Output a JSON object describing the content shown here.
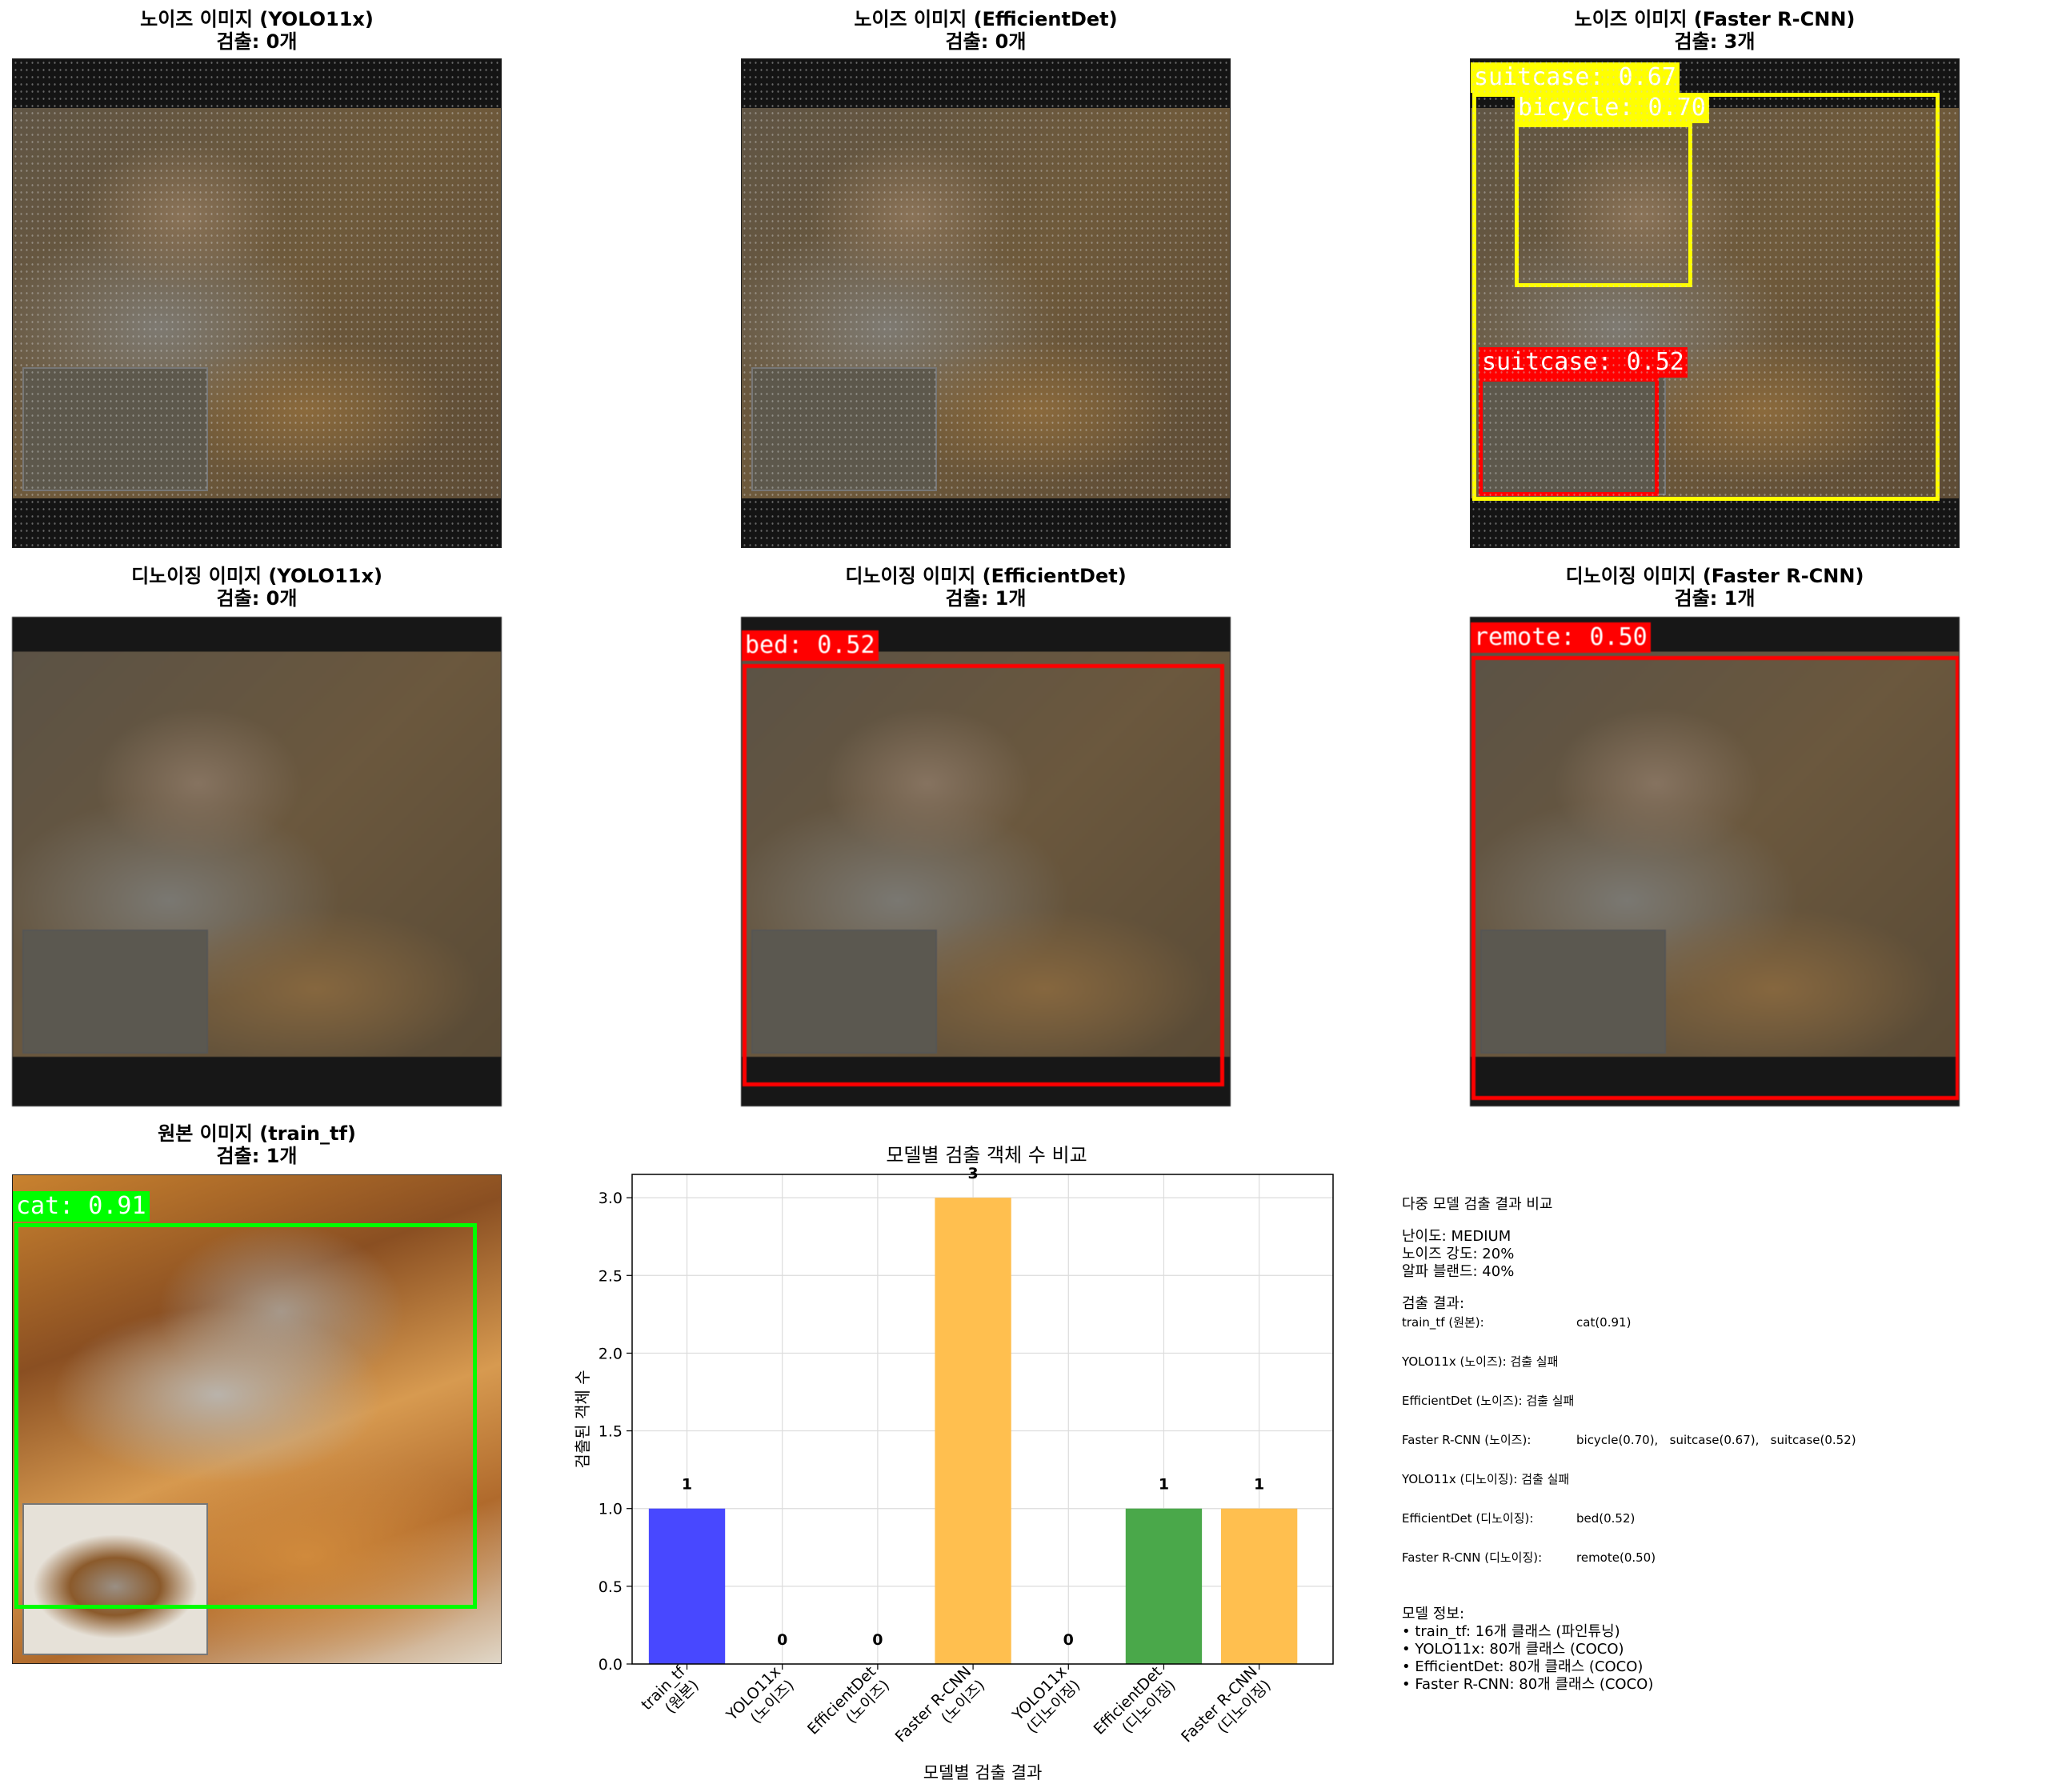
{
  "panels": {
    "noisy_yolo": {
      "title": "노이즈 이미지 (YOLO11x)",
      "count": "검출: 0개"
    },
    "noisy_effdet": {
      "title": "노이즈 이미지 (EfficientDet)",
      "count": "검출: 0개"
    },
    "noisy_frcnn": {
      "title": "노이즈 이미지 (Faster R-CNN)",
      "count": "검출: 3개",
      "boxes": [
        {
          "label": "suitcase: 0.67",
          "color": "#ffff00"
        },
        {
          "label": "bicycle: 0.70",
          "color": "#ffff00"
        },
        {
          "label": "suitcase: 0.52",
          "color": "#ff0000"
        }
      ]
    },
    "den_yolo": {
      "title": "디노이징 이미지 (YOLO11x)",
      "count": "검출: 0개"
    },
    "den_effdet": {
      "title": "디노이징 이미지 (EfficientDet)",
      "count": "검출: 1개",
      "boxes": [
        {
          "label": "bed: 0.52",
          "color": "#ff0000"
        }
      ]
    },
    "den_frcnn": {
      "title": "디노이징 이미지 (Faster R-CNN)",
      "count": "검출: 1개",
      "boxes": [
        {
          "label": "remote: 0.50",
          "color": "#ff0000"
        }
      ]
    },
    "original": {
      "title": "원본 이미지 (train_tf)",
      "count": "검출: 1개",
      "boxes": [
        {
          "label": "cat: 0.91",
          "color": "#00ff00"
        }
      ]
    }
  },
  "chart_data": {
    "type": "bar",
    "title": "모델별 검출 객체 수 비교",
    "xlabel": "모델별 검출 결과",
    "ylabel": "검출된 객체 수",
    "ylim": [
      0,
      3.15
    ],
    "yticks": [
      "0.0",
      "0.5",
      "1.0",
      "1.5",
      "2.0",
      "2.5",
      "3.0"
    ],
    "grid": true,
    "categories": [
      "train_tf\n(원본)",
      "YOLO11x\n(노이즈)",
      "EfficientDet\n(노이즈)",
      "Faster R-CNN\n(노이즈)",
      "YOLO11x\n(디노이징)",
      "EfficientDet\n(디노이징)",
      "Faster R-CNN\n(디노이징)"
    ],
    "values": [
      1,
      0,
      0,
      3,
      0,
      1,
      1
    ],
    "value_labels": [
      "1",
      "0",
      "0",
      "3",
      "0",
      "1",
      "1"
    ],
    "colors": [
      "#4848ff",
      "#ffbf4f",
      "#ffbf4f",
      "#ffbf4f",
      "#4aa84a",
      "#4aa84a",
      "#ffbf4f"
    ]
  },
  "info": {
    "title": "다중 모델 검출 결과 비교",
    "difficulty": "난이도: MEDIUM",
    "noise": "노이즈 강도: 20%",
    "alpha": "알파 블랜드: 40%",
    "results_title": "검출 결과:",
    "rows": [
      {
        "label": "train_tf (원본):",
        "value": "cat(0.91)",
        "bold": true
      },
      {
        "label": "YOLO11x (노이즈): 검출 실패",
        "value": "",
        "bold": false
      },
      {
        "label": "EfficientDet (노이즈): 검출 실패",
        "value": "",
        "bold": false
      },
      {
        "label": "Faster R-CNN (노이즈):",
        "value": "bicycle(0.70),   suitcase(0.67),   suitcase(0.52)",
        "bold": true
      },
      {
        "label": "YOLO11x (디노이징): 검출 실패",
        "value": "",
        "bold": false
      },
      {
        "label": "EfficientDet (디노이징):",
        "value": "bed(0.52)",
        "bold": true
      },
      {
        "label": "Faster R-CNN (디노이징):",
        "value": "remote(0.50)",
        "bold": true
      }
    ],
    "model_title": "모델 정보:",
    "models": [
      "• train_tf: 16개 클래스 (파인튜닝)",
      "• YOLO11x: 80개 클래스 (COCO)",
      "• EfficientDet: 80개 클래스 (COCO)",
      "• Faster R-CNN: 80개 클래스 (COCO)"
    ]
  }
}
